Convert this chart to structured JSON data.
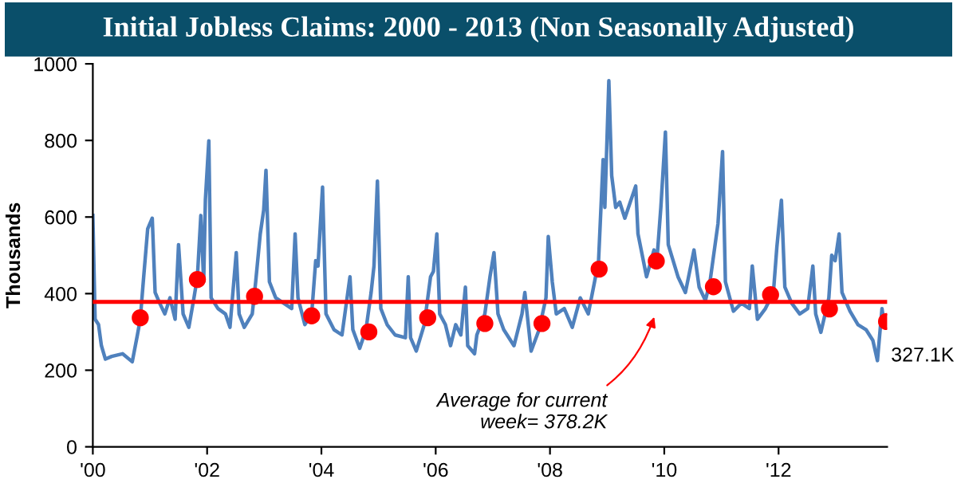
{
  "chart_data": {
    "type": "line",
    "title": "Initial Jobless Claims: 2000 - 2013 (Non Seasonally Adjusted)",
    "ylabel": "Thousands",
    "series": [
      {
        "color": "#4f81bd",
        "x": [
          2000.0,
          2000.04,
          2000.1,
          2000.15,
          2000.22,
          2000.33,
          2000.52,
          2000.69,
          2000.78,
          2000.83,
          2000.89,
          2000.96,
          2001.04,
          2001.09,
          2001.17,
          2001.26,
          2001.35,
          2001.44,
          2001.5,
          2001.58,
          2001.68,
          2001.77,
          2001.83,
          2001.89,
          2001.94,
          2001.97,
          2002.03,
          2002.07,
          2002.19,
          2002.32,
          2002.4,
          2002.51,
          2002.56,
          2002.65,
          2002.79,
          2002.85,
          2002.93,
          2002.99,
          2003.03,
          2003.09,
          2003.2,
          2003.34,
          2003.48,
          2003.54,
          2003.59,
          2003.71,
          2003.83,
          2003.9,
          2003.94,
          2004.02,
          2004.08,
          2004.22,
          2004.36,
          2004.5,
          2004.55,
          2004.67,
          2004.78,
          2004.87,
          2004.92,
          2004.98,
          2005.04,
          2005.15,
          2005.29,
          2005.47,
          2005.52,
          2005.56,
          2005.66,
          2005.8,
          2005.91,
          2005.96,
          2006.02,
          2006.07,
          2006.17,
          2006.26,
          2006.35,
          2006.44,
          2006.52,
          2006.56,
          2006.68,
          2006.72,
          2006.86,
          2006.95,
          2007.02,
          2007.09,
          2007.19,
          2007.37,
          2007.51,
          2007.56,
          2007.67,
          2007.81,
          2007.93,
          2007.97,
          2008.04,
          2008.11,
          2008.25,
          2008.39,
          2008.53,
          2008.67,
          2008.78,
          2008.85,
          2008.93,
          2008.96,
          2009.03,
          2009.08,
          2009.15,
          2009.22,
          2009.31,
          2009.5,
          2009.54,
          2009.69,
          2009.82,
          2009.87,
          2009.94,
          2010.02,
          2010.07,
          2010.24,
          2010.37,
          2010.52,
          2010.61,
          2010.72,
          2010.8,
          2010.94,
          2011.02,
          2011.07,
          2011.21,
          2011.35,
          2011.49,
          2011.54,
          2011.63,
          2011.77,
          2011.91,
          2011.97,
          2012.05,
          2012.11,
          2012.23,
          2012.37,
          2012.51,
          2012.6,
          2012.65,
          2012.74,
          2012.88,
          2012.93,
          2012.99,
          2013.06,
          2013.11,
          2013.25,
          2013.39,
          2013.53,
          2013.65,
          2013.73,
          2013.81,
          2013.85
        ],
        "values": [
          604,
          333,
          319,
          264,
          229,
          236,
          243,
          222,
          292,
          333,
          444,
          569,
          597,
          403,
          375,
          347,
          389,
          333,
          528,
          347,
          312,
          389,
          444,
          604,
          431,
          646,
          799,
          389,
          361,
          347,
          312,
          507,
          347,
          312,
          347,
          431,
          556,
          618,
          722,
          431,
          389,
          375,
          361,
          556,
          389,
          319,
          347,
          486,
          472,
          678,
          347,
          306,
          292,
          444,
          306,
          257,
          306,
          403,
          472,
          694,
          361,
          319,
          292,
          285,
          444,
          285,
          250,
          319,
          444,
          458,
          556,
          347,
          319,
          264,
          319,
          292,
          417,
          264,
          243,
          292,
          347,
          444,
          507,
          347,
          306,
          264,
          347,
          403,
          250,
          306,
          389,
          549,
          431,
          347,
          361,
          312,
          389,
          347,
          431,
          486,
          750,
          625,
          956,
          708,
          625,
          639,
          597,
          681,
          556,
          444,
          514,
          486,
          625,
          822,
          528,
          444,
          403,
          514,
          417,
          382,
          431,
          583,
          771,
          431,
          354,
          375,
          361,
          472,
          333,
          361,
          403,
          521,
          644,
          417,
          375,
          347,
          361,
          472,
          347,
          299,
          389,
          500,
          486,
          556,
          403,
          354,
          319,
          306,
          278,
          225,
          361,
          319
        ]
      },
      {
        "type": "scatter",
        "color": "#ff0000",
        "marker": "circle",
        "x": [
          2000.83,
          2001.83,
          2002.83,
          2003.83,
          2004.83,
          2005.86,
          2006.86,
          2007.86,
          2008.86,
          2009.86,
          2010.86,
          2011.86,
          2012.89,
          2013.89
        ],
        "values": [
          337,
          437,
          393,
          342,
          300,
          337,
          322,
          322,
          464,
          485,
          418,
          397,
          360,
          327.1
        ]
      }
    ],
    "ref_lines": [
      {
        "axis": "y",
        "value": 378.2,
        "color": "#ff0000"
      }
    ],
    "annotations": [
      {
        "text": "327.1K",
        "x": 2013.89,
        "y": 327.1
      },
      "Average for current\nweek= 378.2K"
    ],
    "xlim": [
      2000,
      2013.9
    ],
    "xticks": [
      {
        "value": 2000,
        "label": "'00"
      },
      {
        "value": 2002,
        "label": "'02"
      },
      {
        "value": 2004,
        "label": "'04"
      },
      {
        "value": 2006,
        "label": "'06"
      },
      {
        "value": 2008,
        "label": "'08"
      },
      {
        "value": 2010,
        "label": "'10"
      },
      {
        "value": 2012,
        "label": "'12"
      }
    ],
    "ylim": [
      0,
      1000
    ],
    "yticks": [
      0,
      200,
      400,
      600,
      800,
      1000
    ],
    "grid": false,
    "legend": false
  }
}
